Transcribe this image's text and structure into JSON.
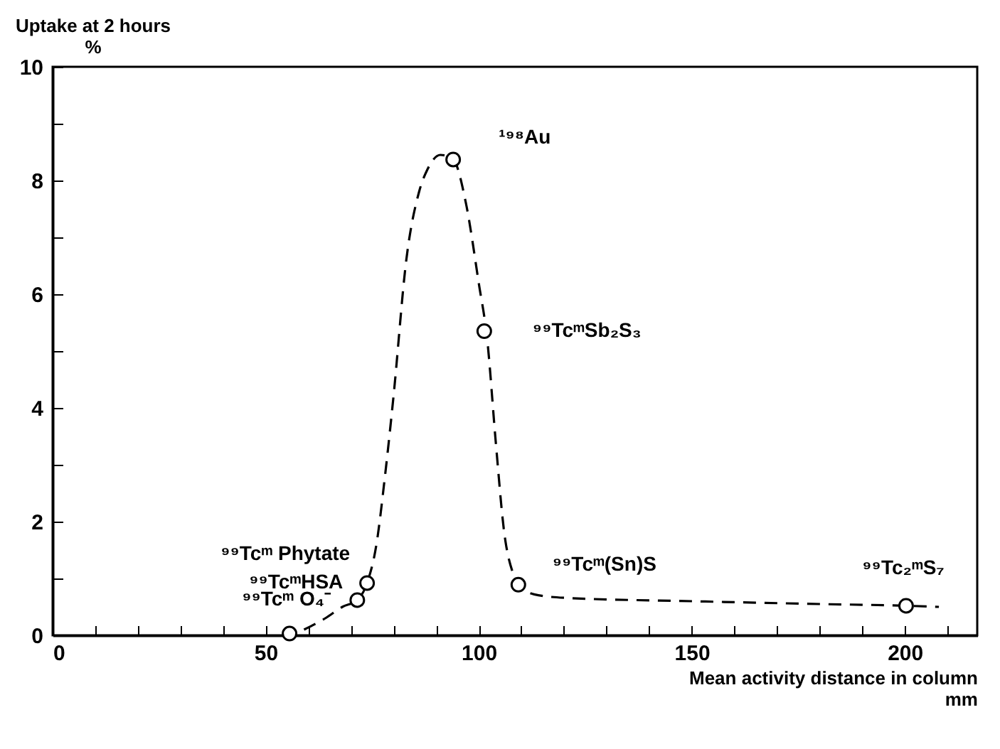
{
  "chart_data": {
    "type": "scatter",
    "ylabel": "Uptake at 2 hours\n%",
    "xlabel": "Mean activity distance in column\nmm",
    "xlim": [
      0,
      217
    ],
    "ylim": [
      0,
      10
    ],
    "xticks": [
      0,
      {
        "value": 10,
        "label": null
      },
      {
        "value": 20,
        "label": null
      },
      {
        "value": 30,
        "label": null
      },
      {
        "value": 40,
        "label": null
      },
      50,
      {
        "value": 60,
        "label": null
      },
      {
        "value": 70,
        "label": null
      },
      {
        "value": 80,
        "label": null
      },
      {
        "value": 90,
        "label": null
      },
      100,
      {
        "value": 110,
        "label": null
      },
      {
        "value": 120,
        "label": null
      },
      {
        "value": 130,
        "label": null
      },
      {
        "value": 140,
        "label": null
      },
      150,
      {
        "value": 160,
        "label": null
      },
      {
        "value": 170,
        "label": null
      },
      {
        "value": 180,
        "label": null
      },
      {
        "value": 190,
        "label": null
      },
      200,
      {
        "value": 210,
        "label": null
      }
    ],
    "yticks": [
      0,
      {
        "value": 1,
        "label": null
      },
      2,
      {
        "value": 3,
        "label": null
      },
      4,
      {
        "value": 5,
        "label": null
      },
      6,
      {
        "value": 7,
        "label": null
      },
      8,
      {
        "value": 9,
        "label": null
      },
      10
    ],
    "series": [
      {
        "type": "line",
        "color": "#000000",
        "line_style": "dashed",
        "marker": "none",
        "x": [
          59,
          64,
          68,
          71.5,
          73.8,
          76,
          78,
          80,
          83,
          86,
          88,
          91,
          94,
          97,
          100,
          102,
          104,
          106,
          108,
          110,
          113,
          120,
          150,
          180,
          200.3,
          208
        ],
        "values": [
          0.1,
          0.3,
          0.5,
          0.62,
          0.92,
          1.6,
          2.8,
          4.2,
          6.6,
          7.8,
          8.2,
          8.45,
          8.37,
          7.6,
          6.2,
          5.2,
          3.4,
          1.8,
          1.1,
          0.85,
          0.72,
          0.66,
          0.6,
          0.55,
          0.52,
          0.5
        ]
      },
      {
        "type": "scatter",
        "color": "#000000",
        "marker": "circle",
        "x": [
          55.6,
          71.5,
          73.8,
          94,
          101.3,
          109.3,
          200.3
        ],
        "values": [
          0.03,
          0.62,
          0.92,
          8.37,
          5.35,
          0.89,
          0.52
        ]
      }
    ],
    "annotations": [
      {
        "text": "⁹⁹Tcᵐ O₄⁻",
        "x": 55.6,
        "y": 0.03
      },
      {
        "text": "⁹⁹TcᵐHSA",
        "x": 71.5,
        "y": 0.62
      },
      {
        "text": "⁹⁹Tcᵐ Phytate",
        "x": 73.8,
        "y": 0.92
      },
      {
        "text": "¹⁹⁸Au",
        "x": 94,
        "y": 8.37
      },
      {
        "text": "⁹⁹TcᵐSb₂S₃",
        "x": 101.3,
        "y": 5.35
      },
      {
        "text": "⁹⁹Tcᵐ(Sn)S",
        "x": 109.3,
        "y": 0.89
      },
      {
        "text": "⁹⁹Tc₂ᵐS₇",
        "x": 200.3,
        "y": 0.52
      }
    ]
  }
}
